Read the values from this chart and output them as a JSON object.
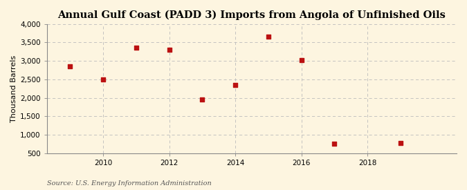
{
  "title": "Annual Gulf Coast (PADD 3) Imports from Angola of Unfinished Oils",
  "ylabel": "Thousand Barrels",
  "source": "Source: U.S. Energy Information Administration",
  "x": [
    2009,
    2010,
    2011,
    2012,
    2013,
    2014,
    2015,
    2016,
    2017,
    2019
  ],
  "y": [
    2850,
    2490,
    3350,
    3300,
    1960,
    2340,
    3660,
    3020,
    760,
    780
  ],
  "xlim": [
    2008.3,
    2020.7
  ],
  "ylim": [
    500,
    4000
  ],
  "yticks": [
    500,
    1000,
    1500,
    2000,
    2500,
    3000,
    3500,
    4000
  ],
  "xticks": [
    2010,
    2012,
    2014,
    2016,
    2018
  ],
  "marker_color": "#bb1111",
  "marker_size": 5,
  "background_color": "#fdf5e0",
  "grid_color": "#bbbbbb",
  "title_fontsize": 10.5,
  "label_fontsize": 8,
  "tick_fontsize": 7.5,
  "source_fontsize": 7
}
